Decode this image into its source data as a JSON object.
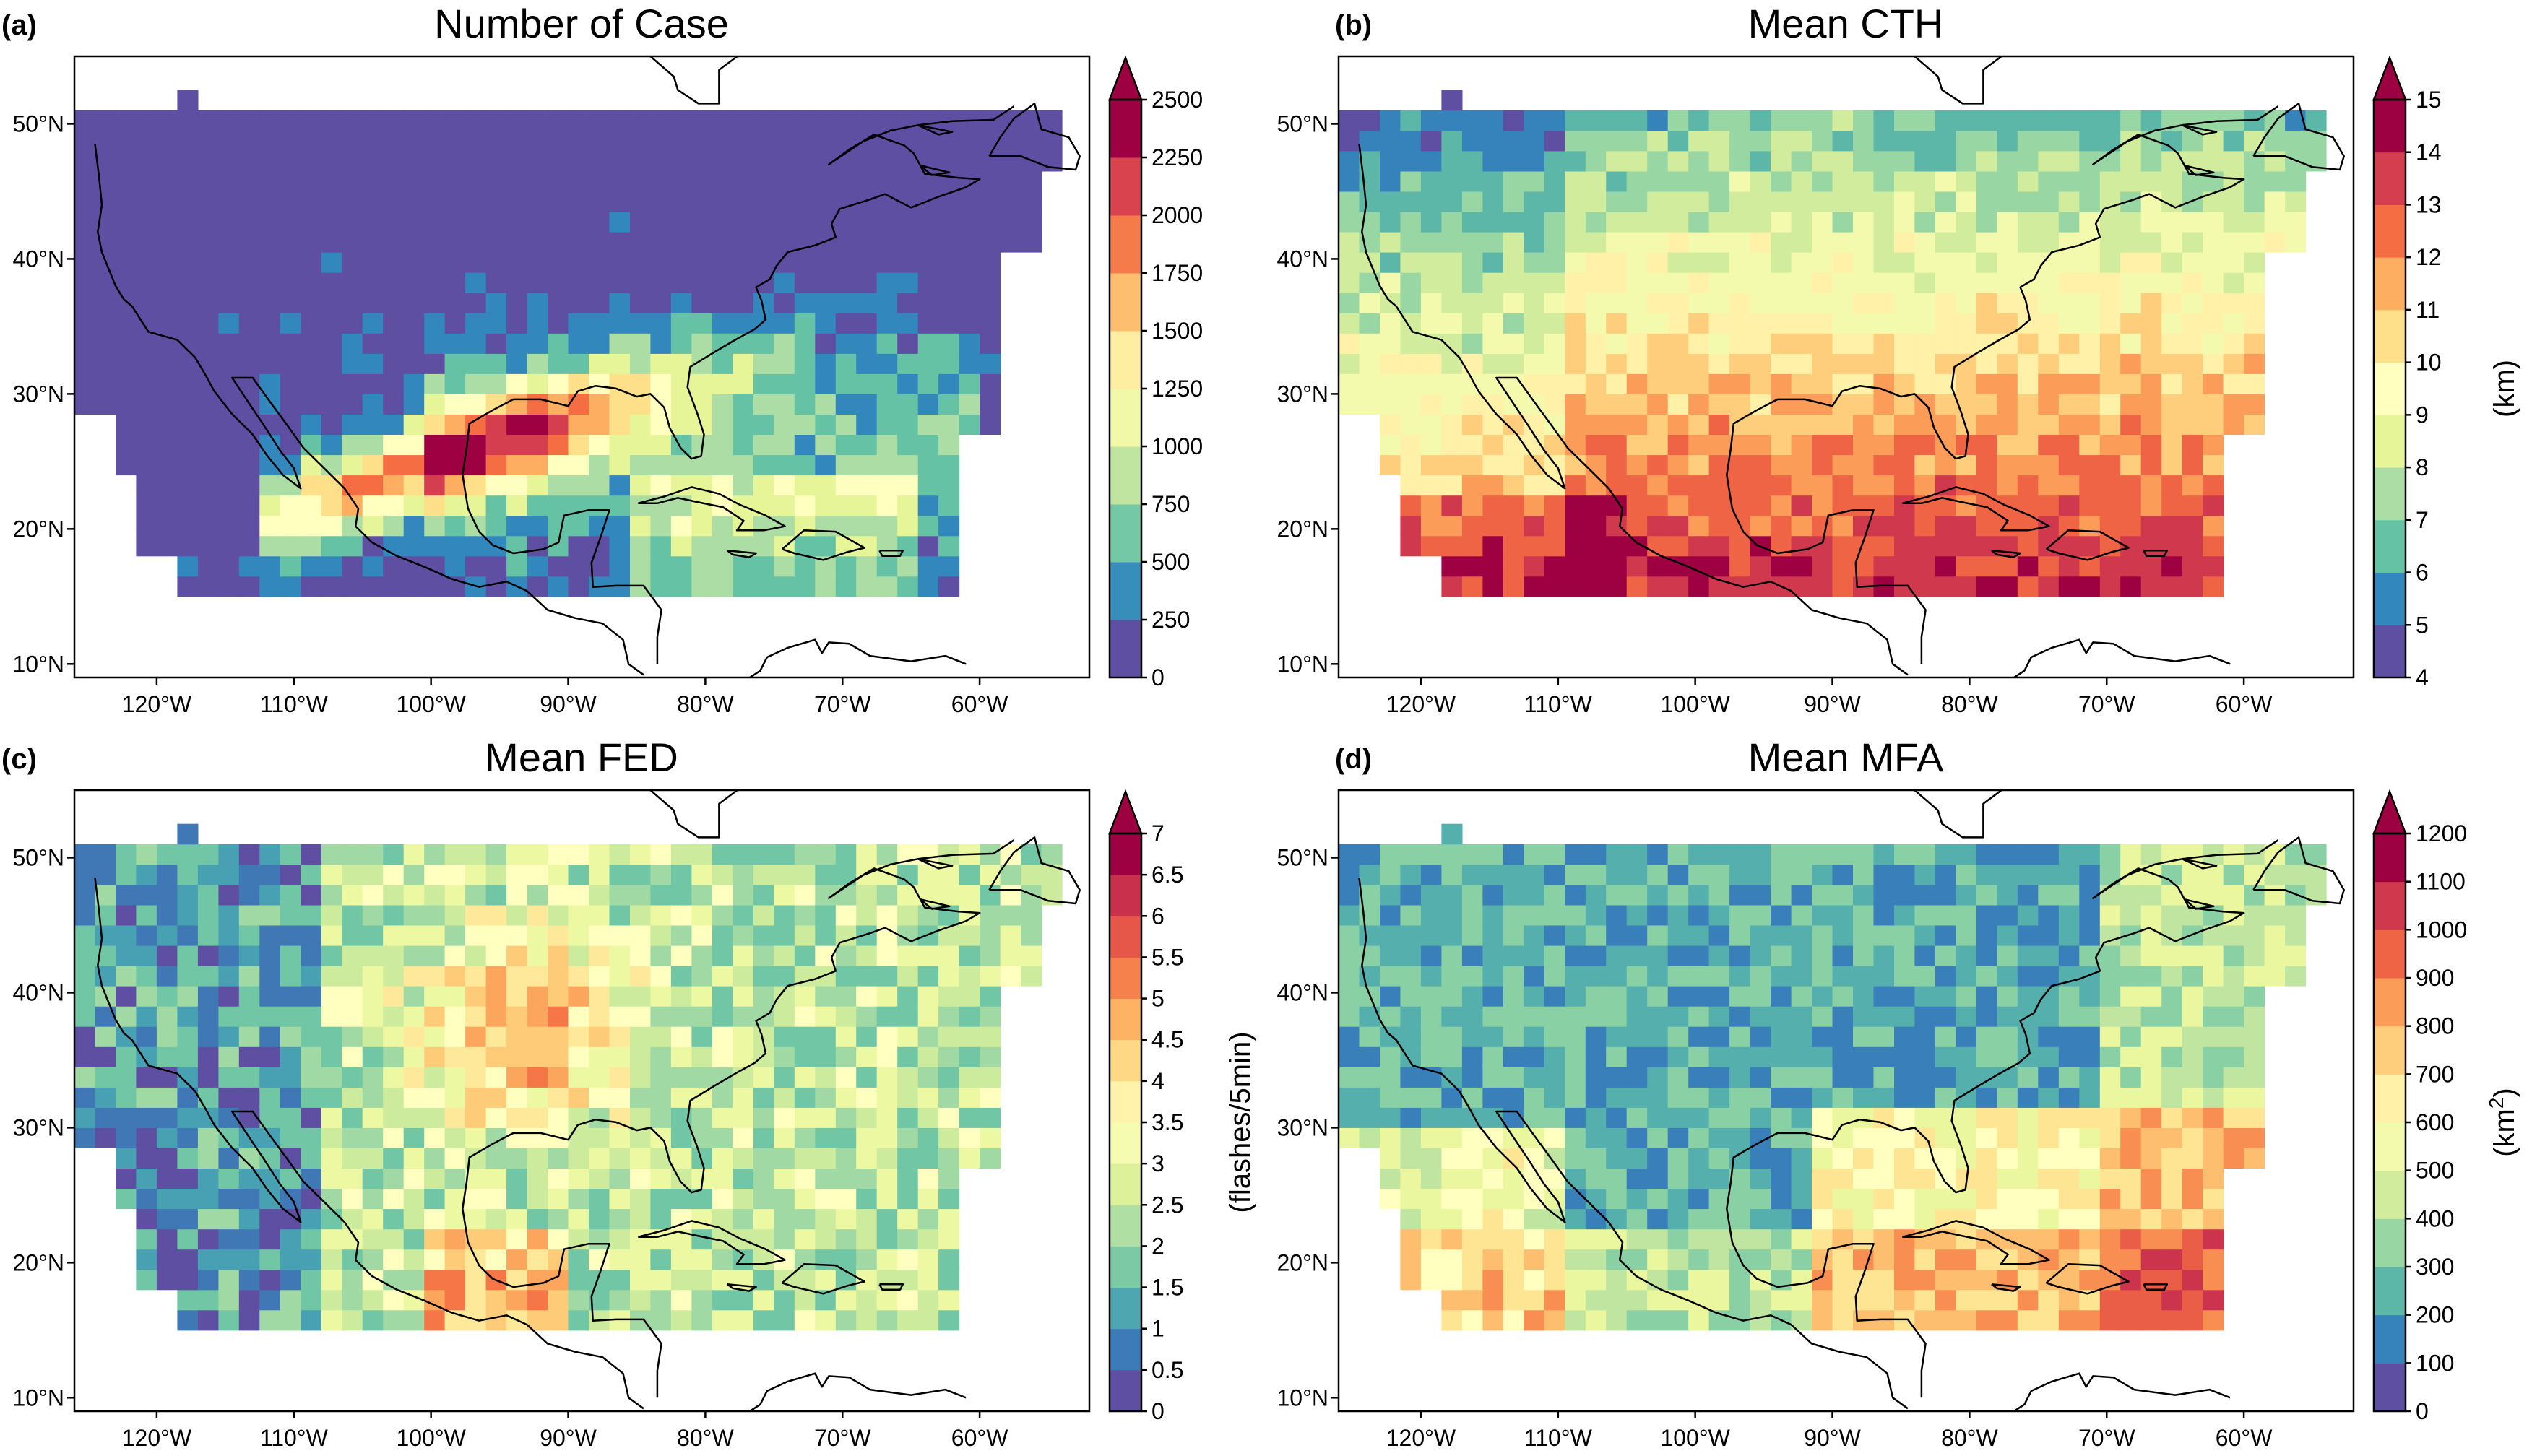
{
  "panels": [
    {
      "label": "(a)",
      "title": "Number of Case",
      "colorbar": {
        "ticks": [
          "0",
          "250",
          "500",
          "750",
          "1000",
          "1250",
          "1500",
          "1750",
          "2000",
          "2250",
          "2500"
        ],
        "unit": "",
        "unit_super": "",
        "n_colors": 11
      },
      "field": "cases"
    },
    {
      "label": "(b)",
      "title": "Mean CTH",
      "colorbar": {
        "ticks": [
          "4",
          "5",
          "6",
          "7",
          "8",
          "9",
          "10",
          "11",
          "12",
          "13",
          "14",
          "15"
        ],
        "unit": "(km)",
        "unit_super": "",
        "n_colors": 12
      },
      "field": "cth"
    },
    {
      "label": "(c)",
      "title": "Mean FED",
      "colorbar": {
        "ticks": [
          "0",
          "0.5",
          "1",
          "1.5",
          "2",
          "2.5",
          "3",
          "3.5",
          "4",
          "4.5",
          "5",
          "5.5",
          "6",
          "6.5",
          "7"
        ],
        "unit": "(flashes/5min)",
        "unit_super": "",
        "n_colors": 15
      },
      "field": "fed"
    },
    {
      "label": "(d)",
      "title": "Mean MFA",
      "colorbar": {
        "ticks": [
          "0",
          "100",
          "200",
          "300",
          "400",
          "500",
          "600",
          "700",
          "800",
          "900",
          "1000",
          "1100",
          "1200"
        ],
        "unit": "(km",
        "unit_super": "2",
        "unit_tail": ")",
        "n_colors": 13
      },
      "field": "mfa"
    }
  ],
  "axes": {
    "lon_ticks": [
      "120°W",
      "110°W",
      "100°W",
      "90°W",
      "80°W",
      "70°W",
      "60°W"
    ],
    "lat_ticks": [
      "10°N",
      "20°N",
      "30°N",
      "40°N",
      "50°N"
    ],
    "lon_values": [
      -120,
      -110,
      -100,
      -90,
      -80,
      -70,
      -60
    ],
    "lat_values": [
      10,
      20,
      30,
      40,
      50
    ],
    "lon_range": [
      -126,
      -52
    ],
    "lat_range": [
      9,
      55
    ]
  },
  "colormap": [
    "#5e4fa2",
    "#3288bd",
    "#66c2a5",
    "#abdda4",
    "#e6f598",
    "#ffffbf",
    "#fee08b",
    "#fdae61",
    "#f46d43",
    "#d53e4f",
    "#9e0142"
  ],
  "over_color": "#9e0142"
}
